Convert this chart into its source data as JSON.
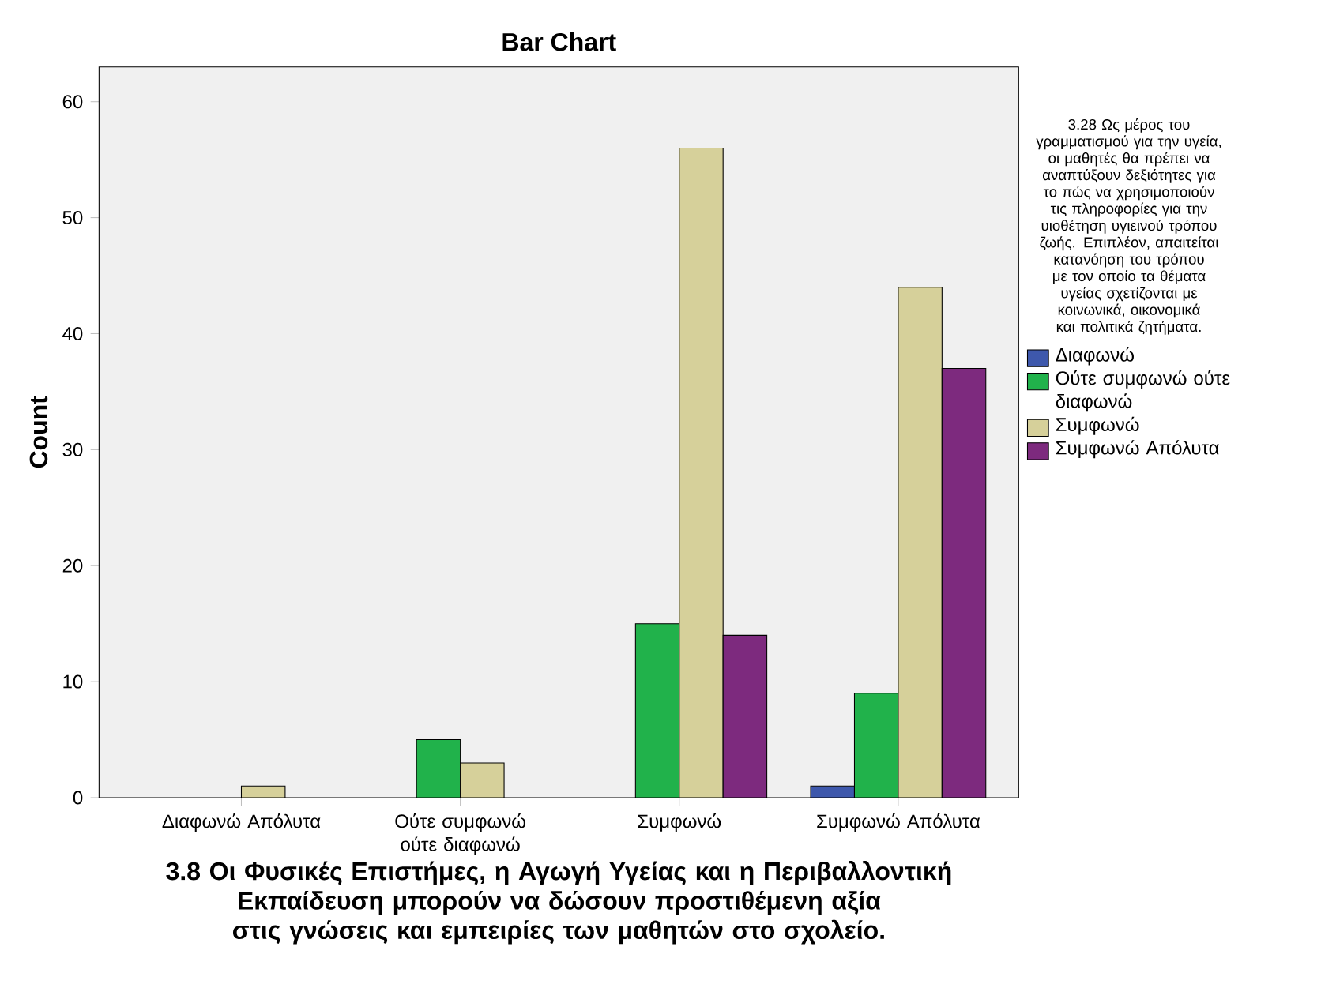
{
  "chart_data": {
    "type": "bar",
    "title": "Bar Chart",
    "xlabel": "3.8 Οι Φυσικές Επιστήμες, η Αγωγή Υγείας και η Περιβαλλοντική Εκπαίδευση μπορούν να δώσουν προστιθέμενη αξία στις γνώσεις και εμπειρίες των μαθητών στο σχολείο.",
    "ylabel": "Count",
    "legend_title": "3.28 Ως μέρος του γραμματισμού για την υγεία, οι μαθητές θα πρέπει να αναπτύξουν δεξιότητες για το πώς να χρησιμοποιούν τις πληροφορίες για την υιοθέτηση υγιεινού τρόπου ζωής. Επιπλέον, απαιτείται κατανόηση του τρόπου με τον οποίο τα θέματα υγείας σχετίζονται με κοινωνικά, οικονομικά και πολιτικά ζητήματα.",
    "categories": [
      "Διαφωνώ Απόλυτα",
      "Ούτε συμφωνώ ούτε διαφωνώ",
      "Συμφωνώ",
      "Συμφωνώ Απόλυτα"
    ],
    "series": [
      {
        "name": "Διαφωνώ",
        "color": "#3e58ac",
        "values": [
          null,
          null,
          null,
          1
        ]
      },
      {
        "name": "Ούτε συμφωνώ ούτε διαφωνώ",
        "color": "#21b24b",
        "values": [
          null,
          5,
          15,
          9
        ]
      },
      {
        "name": "Συμφωνώ",
        "color": "#d6d09a",
        "values": [
          1,
          3,
          56,
          44
        ]
      },
      {
        "name": "Συμφωνώ Απόλυτα",
        "color": "#7d2a7e",
        "values": [
          null,
          null,
          14,
          37
        ]
      }
    ],
    "ylim": [
      0,
      63
    ],
    "yticks": [
      0,
      10,
      20,
      30,
      40,
      50,
      60
    ],
    "grid": false,
    "legend": "right"
  }
}
